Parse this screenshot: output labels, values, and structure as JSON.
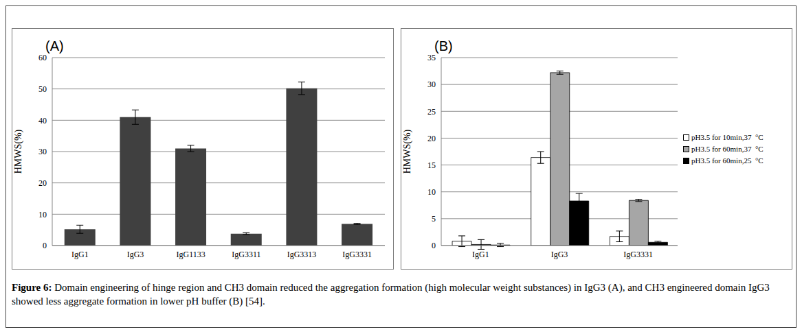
{
  "chart_data": [
    {
      "type": "bar",
      "title": "(A)",
      "y_label": "HMWS(%)",
      "categories": [
        "IgG1",
        "IgG3",
        "IgG1133",
        "IgG3311",
        "IgG3313",
        "IgG3331"
      ],
      "values": [
        5.2,
        41,
        31,
        3.8,
        50.2,
        6.9
      ],
      "errors": [
        1.3,
        2.3,
        1.0,
        0.3,
        2.0,
        0.2
      ],
      "color": "#404040",
      "ylim": [
        0,
        60
      ],
      "yticks": [
        0,
        10,
        20,
        30,
        40,
        50,
        60
      ],
      "grid": true
    },
    {
      "type": "bar",
      "title": "(B)",
      "y_label": "HMWS(%)",
      "categories": [
        "IgG1",
        "IgG3",
        "IgG3331"
      ],
      "series": [
        {
          "name": "pH3.5 for 10min,37  °C",
          "color": "#ffffff",
          "values": [
            0.8,
            16.4,
            1.7
          ],
          "errors": [
            1.0,
            1.1,
            1.0
          ]
        },
        {
          "name": "pH3.5 for 60min,37  °C",
          "color": "#a6a6a6",
          "values": [
            0.2,
            32.2,
            8.4
          ],
          "errors": [
            0.9,
            0.3,
            0.2
          ]
        },
        {
          "name": "pH3.5 for 60min,25  °C",
          "color": "#000000",
          "values": [
            0.1,
            8.3,
            0.6
          ],
          "errors": [
            0.3,
            1.4,
            0.2
          ]
        }
      ],
      "ylim": [
        0,
        35
      ],
      "yticks": [
        0,
        5,
        10,
        15,
        20,
        25,
        30,
        35
      ],
      "grid": true,
      "legend": "right"
    }
  ],
  "caption": {
    "label": "Figure 6:",
    "text": "Domain engineering of hinge region and CH3 domain reduced the aggregation formation (high molecular weight substances) in IgG3 (A), and CH3 engineered domain IgG3 showed less aggregate formation in lower pH buffer (B) [54]."
  }
}
